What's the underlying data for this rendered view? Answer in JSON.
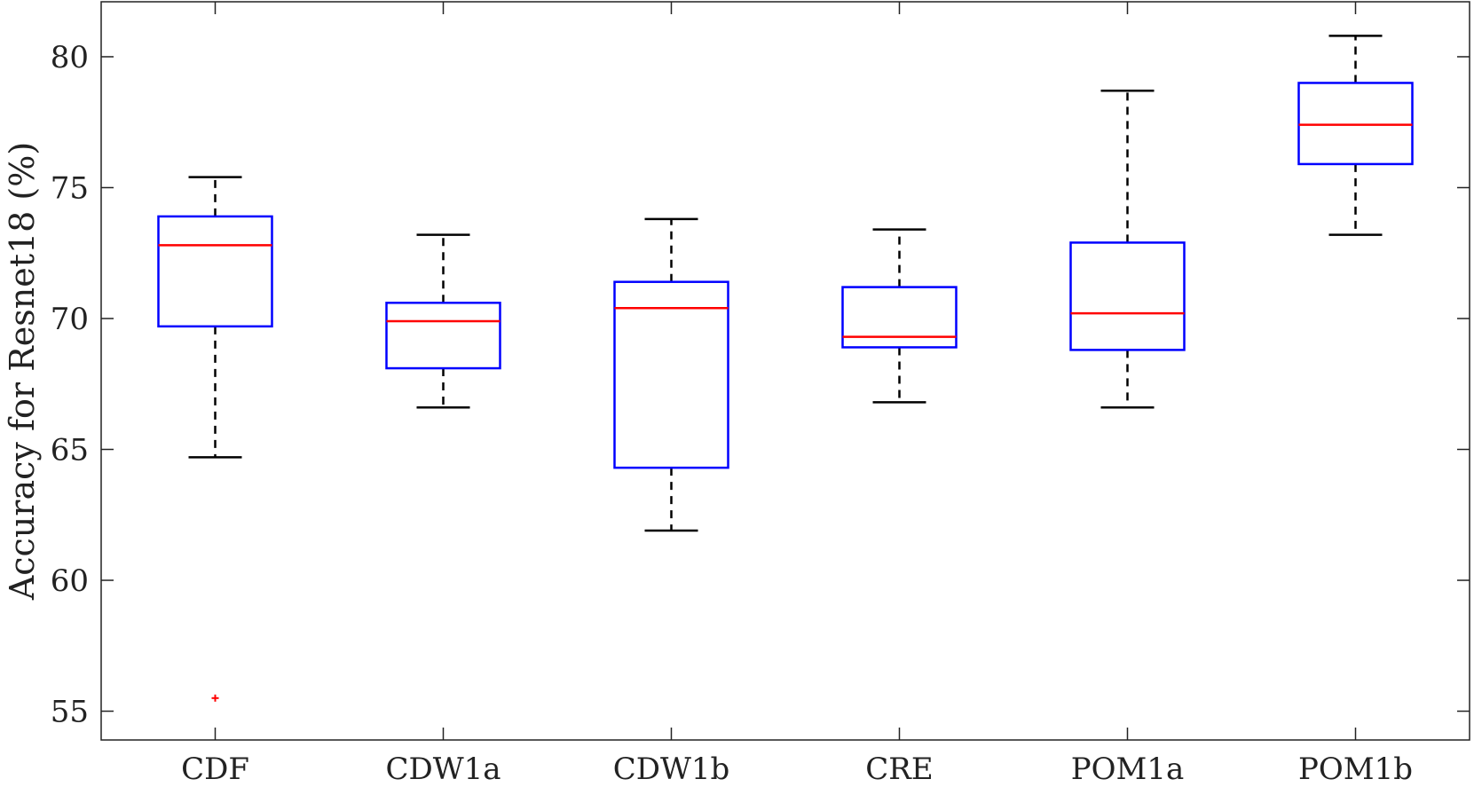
{
  "chart_data": {
    "type": "boxplot",
    "title": "",
    "xlabel": "",
    "ylabel": "Accuracy for Resnet18 (%)",
    "ylim": [
      53.9,
      82.1
    ],
    "yticks": [
      55,
      60,
      65,
      70,
      75,
      80
    ],
    "ytick_labels": [
      "55",
      "60",
      "65",
      "70",
      "75",
      "80"
    ],
    "grid": false,
    "categories": [
      "CDF",
      "CDW1a",
      "CDW1b",
      "CRE",
      "POM1a",
      "POM1b"
    ],
    "boxes": [
      {
        "category": "CDF",
        "whisker_low": 64.7,
        "q1": 69.7,
        "median": 72.8,
        "q3": 73.9,
        "whisker_high": 75.4,
        "outliers": [
          55.5
        ]
      },
      {
        "category": "CDW1a",
        "whisker_low": 66.6,
        "q1": 68.1,
        "median": 69.9,
        "q3": 70.6,
        "whisker_high": 73.2,
        "outliers": []
      },
      {
        "category": "CDW1b",
        "whisker_low": 61.9,
        "q1": 64.3,
        "median": 70.4,
        "q3": 71.4,
        "whisker_high": 73.8,
        "outliers": []
      },
      {
        "category": "CRE",
        "whisker_low": 66.8,
        "q1": 68.9,
        "median": 69.3,
        "q3": 71.2,
        "whisker_high": 73.4,
        "outliers": []
      },
      {
        "category": "POM1a",
        "whisker_low": 66.6,
        "q1": 68.8,
        "median": 70.2,
        "q3": 72.9,
        "whisker_high": 78.7,
        "outliers": []
      },
      {
        "category": "POM1b",
        "whisker_low": 73.2,
        "q1": 75.9,
        "median": 77.4,
        "q3": 79.0,
        "whisker_high": 80.8,
        "outliers": []
      }
    ],
    "colors": {
      "box": "#0000ff",
      "median": "#ff0000",
      "whisker": "#000000",
      "outlier": "#ff0000",
      "axis": "#222222"
    }
  }
}
